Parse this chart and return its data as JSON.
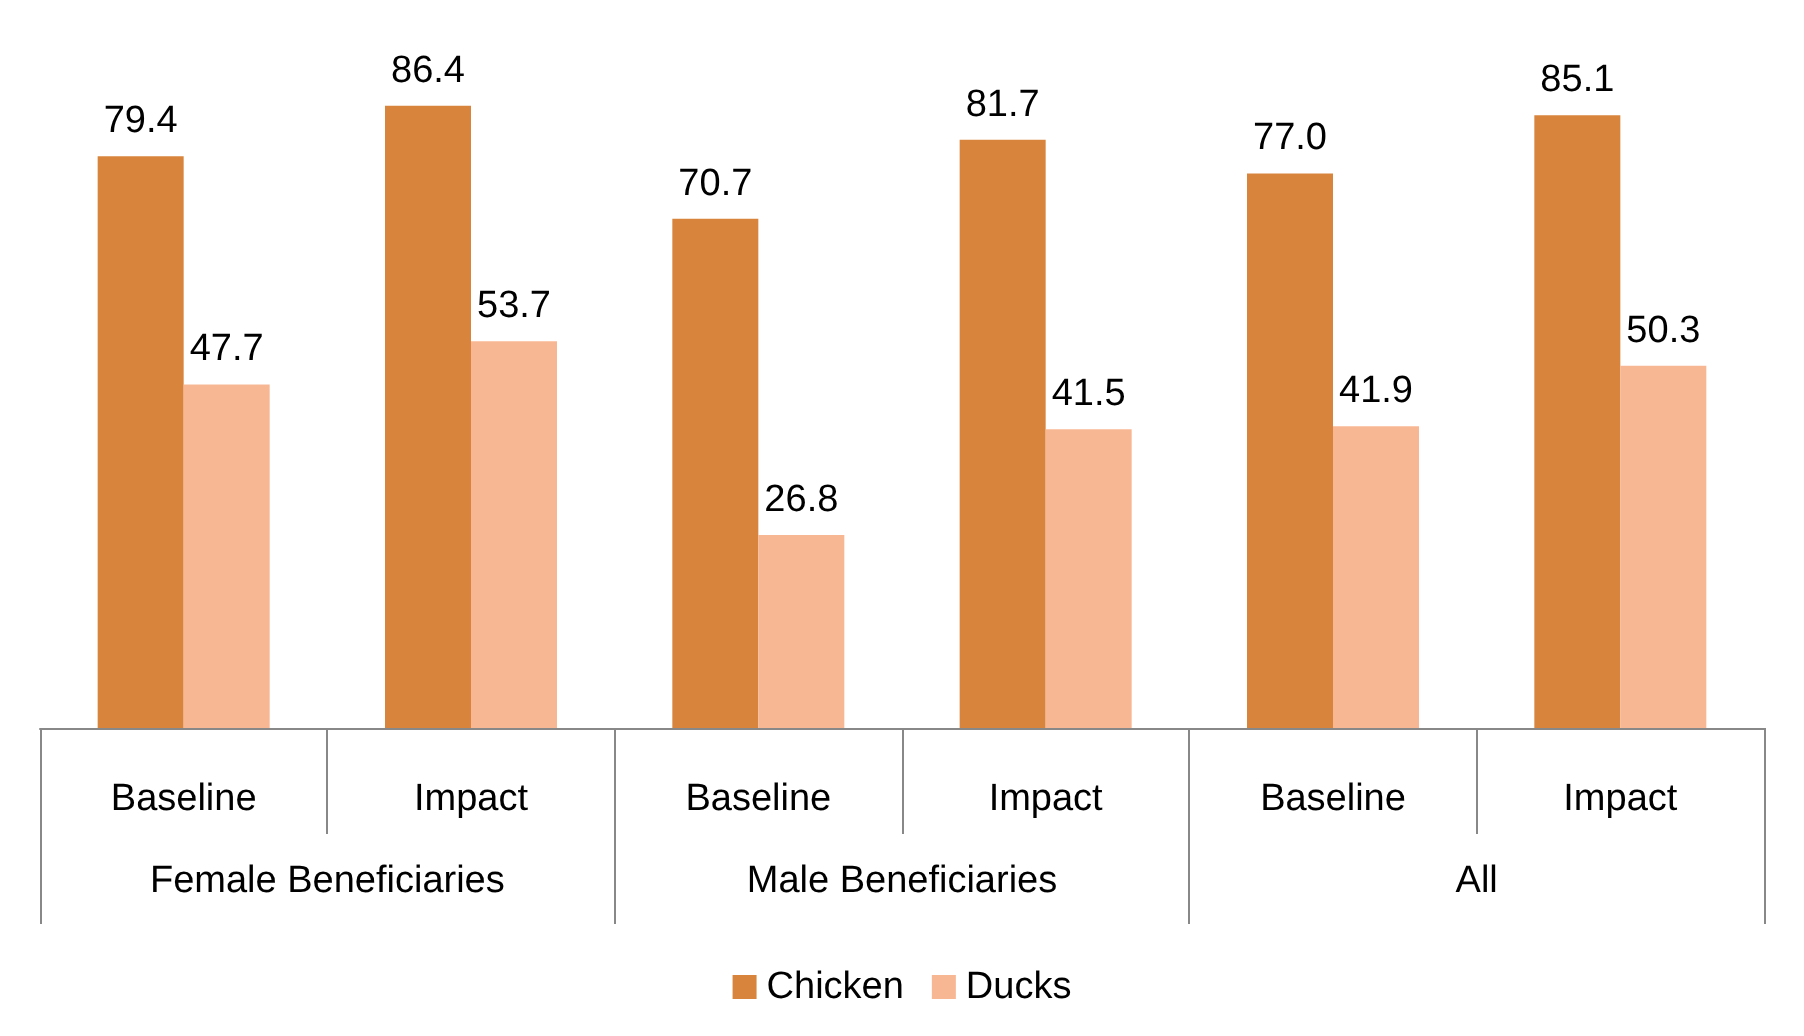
{
  "chart_data": {
    "type": "bar",
    "categories": [
      "Baseline",
      "Impact",
      "Baseline",
      "Impact",
      "Baseline",
      "Impact"
    ],
    "annotations": [
      "Female Beneficiaries",
      "Male Beneficiaries",
      "All"
    ],
    "series": [
      {
        "name": "Chicken",
        "color": "#d9843c",
        "values": [
          79.4,
          86.4,
          70.7,
          81.7,
          77.0,
          85.1
        ],
        "value_labels": [
          "79.4",
          "86.4",
          "70.7",
          "81.7",
          "77.0",
          "85.1"
        ]
      },
      {
        "name": "Ducks",
        "color": "#f8b793",
        "values": [
          47.7,
          53.7,
          26.8,
          41.5,
          41.9,
          50.3
        ],
        "value_labels": [
          "47.7",
          "53.7",
          "26.8",
          "41.5",
          "41.9",
          "50.3"
        ]
      }
    ],
    "legend": "bottom",
    "grid": false
  }
}
